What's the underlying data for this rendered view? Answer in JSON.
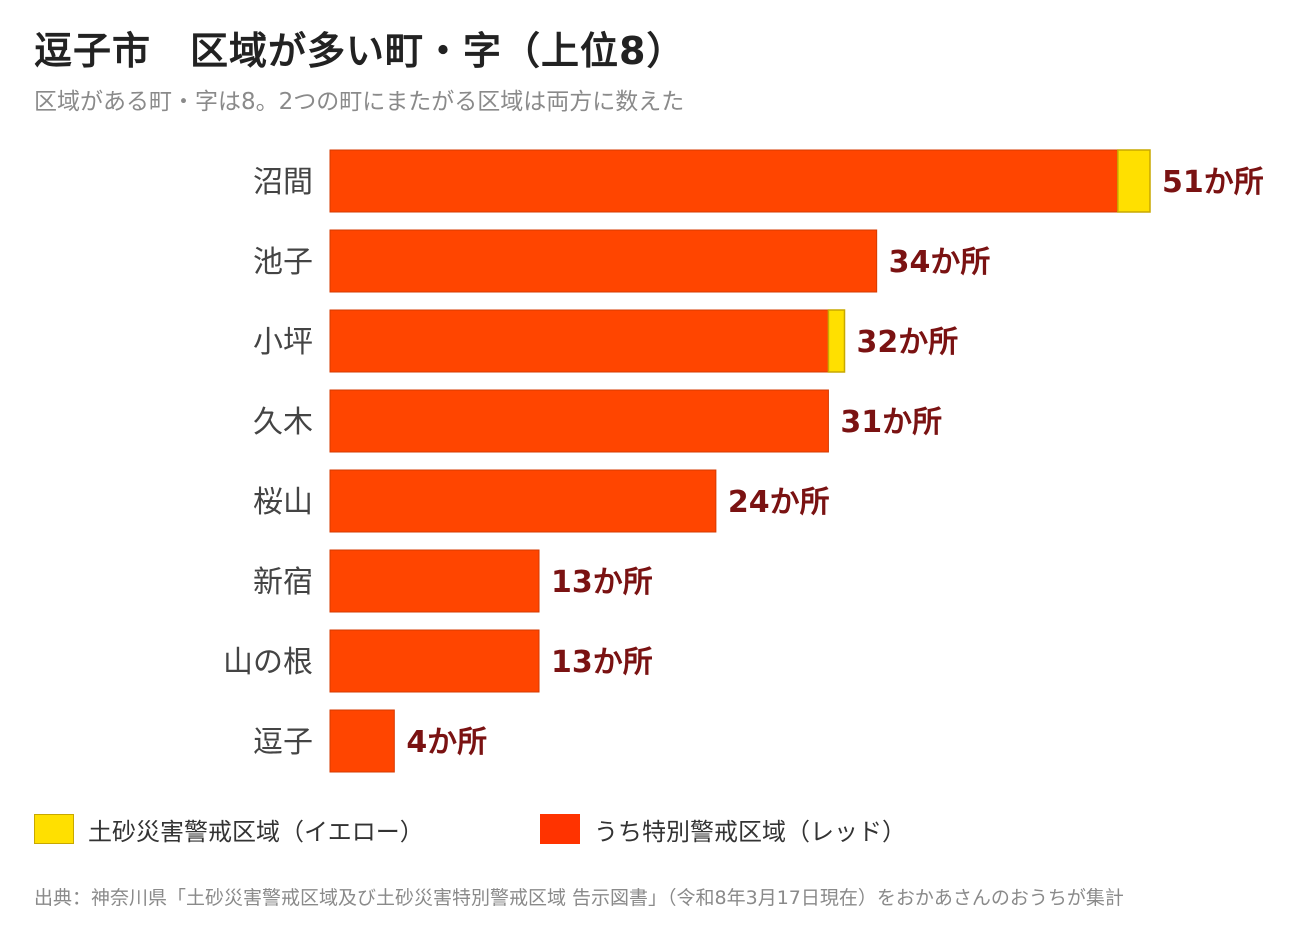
{
  "title": "逗子市　区域が多い町・字（上位8）",
  "subtitle": "区域がある町・字は8。2つの町にまたがる区域は両方に数えた",
  "chart_data": {
    "type": "bar",
    "orientation": "horizontal",
    "stacked": true,
    "categories": [
      "沼間",
      "池子",
      "小坪",
      "久木",
      "桜山",
      "新宿",
      "山の根",
      "逗子"
    ],
    "series": [
      {
        "name": "うち特別警戒区域（レッド）",
        "values": [
          49,
          34,
          31,
          31,
          24,
          13,
          13,
          4
        ],
        "color": "#FF4500"
      },
      {
        "name": "土砂災害警戒区域（イエロー）",
        "values": [
          2,
          0,
          1,
          0,
          0,
          0,
          0,
          0
        ],
        "color": "#FFE000"
      }
    ],
    "data_labels": [
      "51か所",
      "34か所",
      "32か所",
      "31か所",
      "24か所",
      "13か所",
      "13か所",
      "4か所"
    ],
    "xlim": [
      0,
      51
    ],
    "grid": false,
    "legend_position": "bottom"
  },
  "legend": [
    {
      "label": "土砂災害警戒区域（イエロー）",
      "color": "#FFE000",
      "border": "#C8A800"
    },
    {
      "label": "うち特別警戒区域（レッド）",
      "color": "#FF3300",
      "border": "#FF3300"
    }
  ],
  "colors": {
    "red_bar": "#FF4500",
    "red_border": "#D63A00",
    "yellow_bar": "#FFE000",
    "yellow_border": "#C8A800",
    "value_label": "#7A1212",
    "category_label": "#444444"
  },
  "source": "出典：神奈川県「土砂災害警戒区域及び土砂災害特別警戒区域 告示図書」（令和8年3月17日現在）をおかあさんのおうちが集計"
}
